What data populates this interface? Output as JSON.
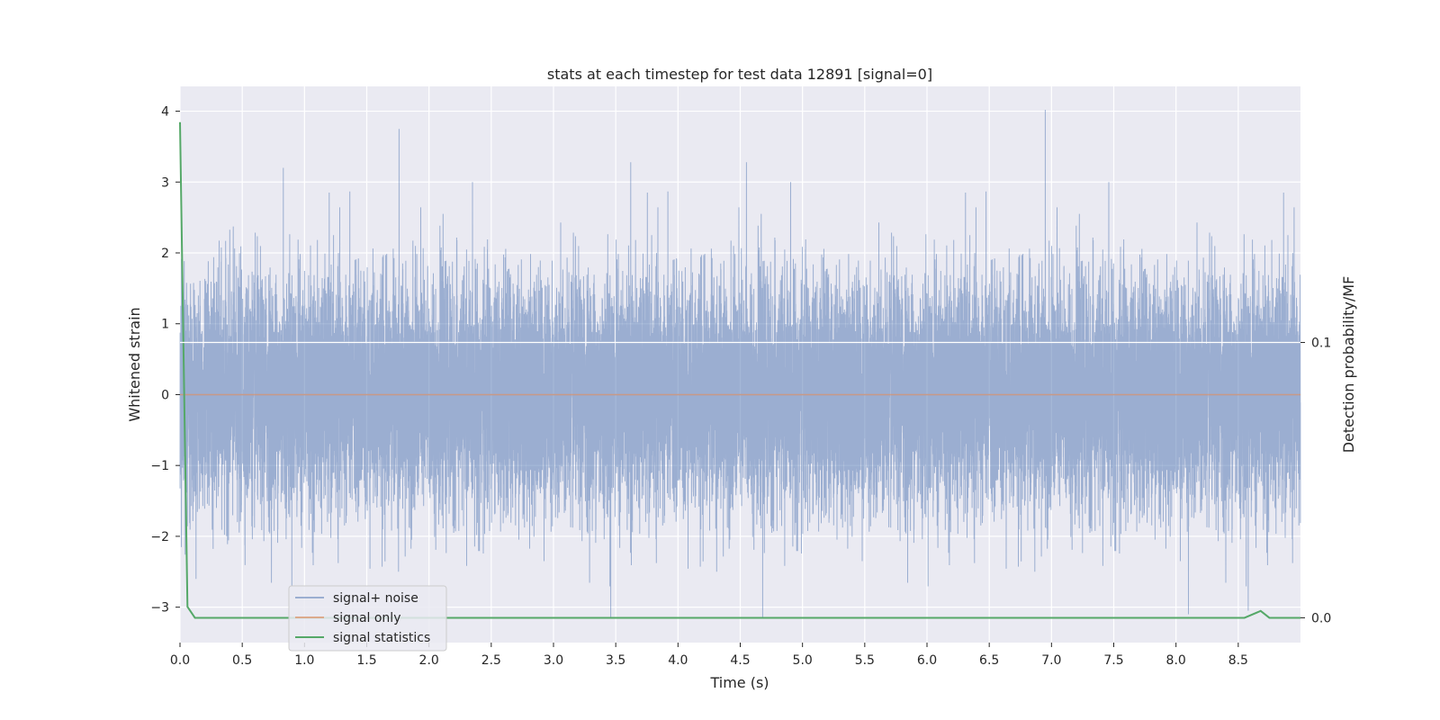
{
  "chart_data": {
    "type": "line",
    "title": "stats at each timestep for test data 12891 [signal=0]",
    "xlabel": "Time (s)",
    "ylabel": "Whitened strain",
    "y2label": "Detection probability/MF",
    "xlim": [
      0,
      9
    ],
    "ylim": [
      -3.5,
      4.35
    ],
    "y2lim": [
      -0.009,
      0.193
    ],
    "xticks": [
      0.0,
      0.5,
      1.0,
      1.5,
      2.0,
      2.5,
      3.0,
      3.5,
      4.0,
      4.5,
      5.0,
      5.5,
      6.0,
      6.5,
      7.0,
      7.5,
      8.0,
      8.5
    ],
    "yticks": [
      -3,
      -2,
      -1,
      0,
      1,
      2,
      3,
      4
    ],
    "y2ticks": [
      0.0,
      0.1
    ],
    "grid": true,
    "legend": {
      "placement": "lower-left"
    },
    "series": [
      {
        "name": "signal+ noise",
        "axis": "left",
        "color": "#4c72b0",
        "sample_rate_hz": 2048,
        "duration_s": 9,
        "distribution": "approximately gaussian noise, std ~0.8, range about -3.3 to 4.0",
        "notable_peaks": [
          {
            "x": 0.83,
            "y": 3.2
          },
          {
            "x": 1.76,
            "y": 3.75
          },
          {
            "x": 3.62,
            "y": 3.28
          },
          {
            "x": 4.55,
            "y": 3.28
          },
          {
            "x": 6.95,
            "y": 4.02
          },
          {
            "x": 3.46,
            "y": -3.15
          },
          {
            "x": 4.68,
            "y": -3.15
          },
          {
            "x": 8.1,
            "y": -3.1
          },
          {
            "x": 8.58,
            "y": -3.05
          }
        ]
      },
      {
        "name": "signal only",
        "axis": "left",
        "color": "#dd8452",
        "x": [
          0,
          9
        ],
        "y": [
          0,
          0
        ]
      },
      {
        "name": "signal statistics",
        "axis": "right",
        "color": "#55a868",
        "x": [
          0.0,
          0.06,
          0.12,
          0.5,
          8.0,
          8.55,
          8.68,
          8.75,
          9.0
        ],
        "y": [
          0.18,
          0.004,
          0.0,
          0.0,
          0.0,
          0.0,
          0.0025,
          0.0,
          0.0
        ]
      }
    ]
  }
}
